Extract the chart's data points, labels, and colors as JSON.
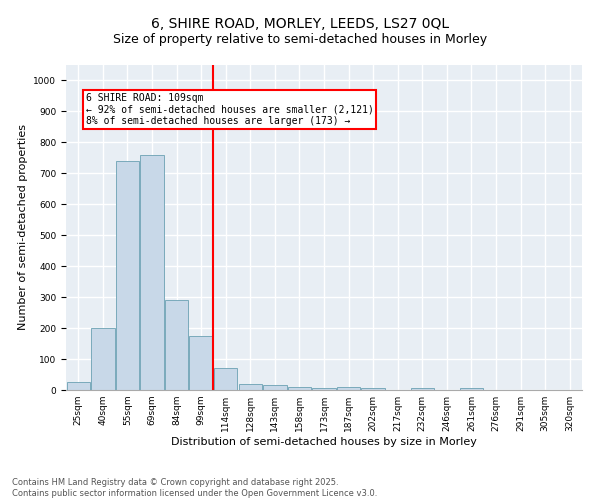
{
  "title_line1": "6, SHIRE ROAD, MORLEY, LEEDS, LS27 0QL",
  "title_line2": "Size of property relative to semi-detached houses in Morley",
  "xlabel": "Distribution of semi-detached houses by size in Morley",
  "ylabel": "Number of semi-detached properties",
  "categories": [
    "25sqm",
    "40sqm",
    "55sqm",
    "69sqm",
    "84sqm",
    "99sqm",
    "114sqm",
    "128sqm",
    "143sqm",
    "158sqm",
    "173sqm",
    "187sqm",
    "202sqm",
    "217sqm",
    "232sqm",
    "246sqm",
    "261sqm",
    "276sqm",
    "291sqm",
    "305sqm",
    "320sqm"
  ],
  "values": [
    25,
    200,
    740,
    760,
    290,
    175,
    70,
    20,
    15,
    10,
    5,
    10,
    5,
    0,
    5,
    0,
    5,
    0,
    0,
    0,
    0
  ],
  "bar_color": "#c8d8e8",
  "bar_edge_color": "#7aaabb",
  "vline_x_index": 6,
  "vline_color": "red",
  "annotation_text": "6 SHIRE ROAD: 109sqm\n← 92% of semi-detached houses are smaller (2,121)\n8% of semi-detached houses are larger (173) →",
  "annotation_box_color": "white",
  "annotation_box_edge_color": "red",
  "ylim": [
    0,
    1050
  ],
  "yticks": [
    0,
    100,
    200,
    300,
    400,
    500,
    600,
    700,
    800,
    900,
    1000
  ],
  "background_color": "#e8eef4",
  "grid_color": "white",
  "footer_line1": "Contains HM Land Registry data © Crown copyright and database right 2025.",
  "footer_line2": "Contains public sector information licensed under the Open Government Licence v3.0.",
  "title_fontsize": 10,
  "subtitle_fontsize": 9,
  "axis_label_fontsize": 8,
  "tick_fontsize": 6.5,
  "footer_fontsize": 6,
  "annotation_fontsize": 7
}
